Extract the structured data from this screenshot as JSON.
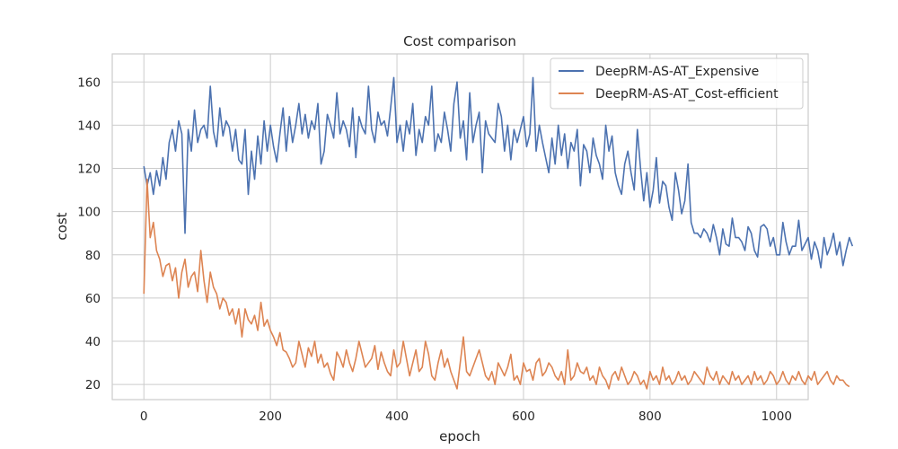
{
  "chart_data": {
    "type": "line",
    "title": "Cost comparison",
    "xlabel": "epoch",
    "ylabel": "cost",
    "xlim": [
      -50,
      1050
    ],
    "ylim": [
      13,
      173
    ],
    "xticks": [
      0,
      200,
      400,
      600,
      800,
      1000
    ],
    "yticks": [
      20,
      40,
      60,
      80,
      100,
      120,
      140,
      160
    ],
    "grid": true,
    "legend_position": "top-right",
    "x_step": 5,
    "series": [
      {
        "name": "DeepRM-AS-AT_Expensive",
        "color": "#4c72b0",
        "values": [
          121,
          112,
          118,
          108,
          119,
          112,
          125,
          115,
          132,
          138,
          128,
          142,
          136,
          90,
          138,
          128,
          147,
          132,
          138,
          140,
          134,
          158,
          137,
          130,
          148,
          135,
          142,
          139,
          128,
          138,
          124,
          122,
          138,
          108,
          128,
          115,
          135,
          122,
          142,
          128,
          140,
          130,
          123,
          136,
          148,
          128,
          144,
          132,
          140,
          150,
          136,
          145,
          134,
          142,
          138,
          150,
          122,
          128,
          145,
          140,
          134,
          155,
          136,
          142,
          138,
          130,
          148,
          125,
          144,
          139,
          136,
          158,
          138,
          132,
          146,
          140,
          142,
          135,
          148,
          162,
          132,
          140,
          128,
          142,
          136,
          150,
          126,
          138,
          132,
          144,
          140,
          158,
          128,
          136,
          132,
          146,
          138,
          128,
          150,
          160,
          134,
          142,
          124,
          155,
          132,
          140,
          146,
          118,
          142,
          136,
          134,
          132,
          150,
          144,
          128,
          140,
          124,
          138,
          132,
          138,
          144,
          130,
          136,
          162,
          128,
          140,
          132,
          125,
          118,
          134,
          122,
          140,
          126,
          136,
          120,
          132,
          128,
          138,
          112,
          131,
          128,
          118,
          134,
          126,
          122,
          115,
          140,
          128,
          135,
          118,
          112,
          108,
          122,
          128,
          118,
          110,
          138,
          120,
          105,
          118,
          102,
          110,
          125,
          104,
          114,
          112,
          102,
          96,
          118,
          110,
          99,
          105,
          122,
          95,
          90,
          90,
          88,
          92,
          90,
          86,
          94,
          88,
          80,
          92,
          85,
          84,
          97,
          88,
          88,
          86,
          82,
          93,
          90,
          82,
          79,
          93,
          94,
          92,
          84,
          88,
          80,
          80,
          95,
          86,
          80,
          84,
          84,
          96,
          82,
          85,
          88,
          78,
          86,
          82,
          74,
          88,
          80,
          84,
          90,
          80,
          86,
          75,
          82,
          88,
          84
        ]
      },
      {
        "name": "DeepRM-AS-AT_Cost-efficient",
        "color": "#dd8452",
        "values": [
          62,
          115,
          88,
          95,
          82,
          78,
          70,
          75,
          76,
          68,
          74,
          60,
          72,
          78,
          65,
          70,
          72,
          63,
          82,
          68,
          58,
          72,
          65,
          62,
          55,
          60,
          58,
          52,
          55,
          48,
          55,
          42,
          55,
          50,
          48,
          52,
          45,
          58,
          47,
          50,
          45,
          42,
          38,
          44,
          36,
          35,
          32,
          28,
          30,
          40,
          34,
          28,
          37,
          33,
          40,
          30,
          34,
          28,
          30,
          25,
          22,
          35,
          32,
          28,
          36,
          30,
          26,
          32,
          40,
          34,
          28,
          30,
          32,
          38,
          27,
          35,
          30,
          26,
          24,
          36,
          28,
          30,
          40,
          32,
          24,
          30,
          36,
          26,
          28,
          40,
          34,
          24,
          22,
          30,
          36,
          28,
          32,
          26,
          22,
          18,
          30,
          42,
          26,
          24,
          28,
          32,
          36,
          30,
          24,
          22,
          26,
          20,
          30,
          27,
          24,
          28,
          34,
          22,
          24,
          20,
          30,
          26,
          27,
          22,
          30,
          32,
          24,
          26,
          30,
          28,
          24,
          22,
          26,
          20,
          36,
          22,
          24,
          30,
          26,
          25,
          28,
          22,
          24,
          20,
          28,
          24,
          22,
          18,
          24,
          26,
          22,
          28,
          24,
          20,
          22,
          26,
          24,
          20,
          22,
          18,
          26,
          22,
          24,
          20,
          28,
          22,
          24,
          20,
          22,
          26,
          22,
          24,
          20,
          22,
          26,
          24,
          22,
          20,
          28,
          24,
          22,
          26,
          20,
          24,
          22,
          20,
          26,
          22,
          24,
          20,
          22,
          24,
          20,
          26,
          22,
          24,
          20,
          22,
          26,
          24,
          20,
          22,
          26,
          22,
          20,
          24,
          22,
          26,
          22,
          20,
          24,
          22,
          26,
          20,
          22,
          24,
          26,
          22,
          20,
          24,
          22,
          22,
          20,
          19
        ]
      }
    ]
  }
}
